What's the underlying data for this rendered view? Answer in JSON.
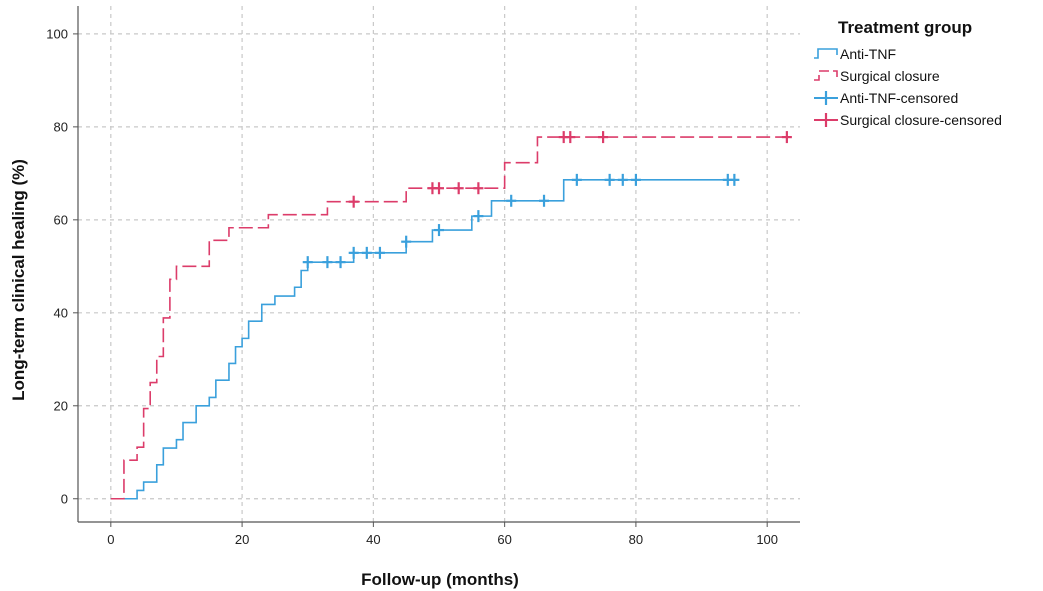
{
  "chart_data": {
    "type": "line",
    "subtype": "kaplan-meier-step",
    "xlabel": "Follow-up (months)",
    "ylabel": "Long-term clinical healing (%)",
    "xlim": [
      -5,
      105
    ],
    "ylim": [
      -5,
      106
    ],
    "xticks": [
      0,
      20,
      40,
      60,
      80,
      100
    ],
    "yticks": [
      0,
      20,
      40,
      60,
      80,
      100
    ],
    "grid": true,
    "legend": {
      "title": "Treatment group",
      "position": "top-right",
      "entries": [
        "Anti-TNF",
        "Surgical closure",
        "Anti-TNF-censored",
        "Surgical closure-censored"
      ]
    },
    "series": [
      {
        "name": "Anti-TNF",
        "color": "#3aa0dc",
        "style": "solid",
        "steps": [
          [
            0,
            0
          ],
          [
            4,
            0
          ],
          [
            4,
            1.8
          ],
          [
            5,
            1.8
          ],
          [
            5,
            3.6
          ],
          [
            7,
            3.6
          ],
          [
            7,
            7.3
          ],
          [
            8,
            7.3
          ],
          [
            8,
            10.9
          ],
          [
            10,
            10.9
          ],
          [
            10,
            12.7
          ],
          [
            11,
            12.7
          ],
          [
            11,
            16.4
          ],
          [
            13,
            16.4
          ],
          [
            13,
            20
          ],
          [
            15,
            20
          ],
          [
            15,
            21.8
          ],
          [
            16,
            21.8
          ],
          [
            16,
            25.5
          ],
          [
            18,
            25.5
          ],
          [
            18,
            29.1
          ],
          [
            19,
            29.1
          ],
          [
            19,
            32.7
          ],
          [
            20,
            32.7
          ],
          [
            20,
            34.5
          ],
          [
            21,
            34.5
          ],
          [
            21,
            38.2
          ],
          [
            23,
            38.2
          ],
          [
            23,
            41.8
          ],
          [
            25,
            41.8
          ],
          [
            25,
            43.6
          ],
          [
            28,
            43.6
          ],
          [
            28,
            45.5
          ],
          [
            29,
            45.5
          ],
          [
            29,
            49.1
          ],
          [
            30,
            49.1
          ],
          [
            30,
            50.9
          ],
          [
            37,
            50.9
          ],
          [
            37,
            52.9
          ],
          [
            45,
            52.9
          ],
          [
            45,
            55.3
          ],
          [
            49,
            55.3
          ],
          [
            49,
            57.8
          ],
          [
            55,
            57.8
          ],
          [
            55,
            60.8
          ],
          [
            58,
            60.8
          ],
          [
            58,
            64.1
          ],
          [
            69,
            64.1
          ],
          [
            69,
            68.6
          ],
          [
            95,
            68.6
          ]
        ],
        "censored": [
          [
            30,
            50.9
          ],
          [
            33,
            50.9
          ],
          [
            35,
            50.9
          ],
          [
            37,
            52.9
          ],
          [
            39,
            52.9
          ],
          [
            41,
            52.9
          ],
          [
            45,
            55.3
          ],
          [
            50,
            57.8
          ],
          [
            56,
            60.8
          ],
          [
            61,
            64.1
          ],
          [
            66,
            64.1
          ],
          [
            71,
            68.6
          ],
          [
            76,
            68.6
          ],
          [
            78,
            68.6
          ],
          [
            80,
            68.6
          ],
          [
            94,
            68.6
          ],
          [
            95,
            68.6
          ]
        ]
      },
      {
        "name": "Surgical closure",
        "color": "#dc3c6a",
        "style": "dashed",
        "steps": [
          [
            0,
            0
          ],
          [
            2,
            0
          ],
          [
            2,
            8.3
          ],
          [
            4,
            8.3
          ],
          [
            4,
            11.1
          ],
          [
            5,
            11.1
          ],
          [
            5,
            19.4
          ],
          [
            6,
            19.4
          ],
          [
            6,
            25
          ],
          [
            7,
            25
          ],
          [
            7,
            30.6
          ],
          [
            8,
            30.6
          ],
          [
            8,
            38.9
          ],
          [
            9,
            38.9
          ],
          [
            9,
            47.2
          ],
          [
            10,
            47.2
          ],
          [
            10,
            50
          ],
          [
            15,
            50
          ],
          [
            15,
            55.6
          ],
          [
            18,
            55.6
          ],
          [
            18,
            58.3
          ],
          [
            24,
            58.3
          ],
          [
            24,
            61.1
          ],
          [
            33,
            61.1
          ],
          [
            33,
            63.9
          ],
          [
            45,
            63.9
          ],
          [
            45,
            66.8
          ],
          [
            60,
            66.8
          ],
          [
            60,
            72.3
          ],
          [
            65,
            72.3
          ],
          [
            65,
            77.8
          ],
          [
            103,
            77.8
          ]
        ],
        "censored": [
          [
            37,
            63.9
          ],
          [
            49,
            66.8
          ],
          [
            50,
            66.8
          ],
          [
            53,
            66.8
          ],
          [
            56,
            66.8
          ],
          [
            69,
            77.8
          ],
          [
            70,
            77.8
          ],
          [
            75,
            77.8
          ],
          [
            103,
            77.8
          ]
        ]
      }
    ]
  }
}
